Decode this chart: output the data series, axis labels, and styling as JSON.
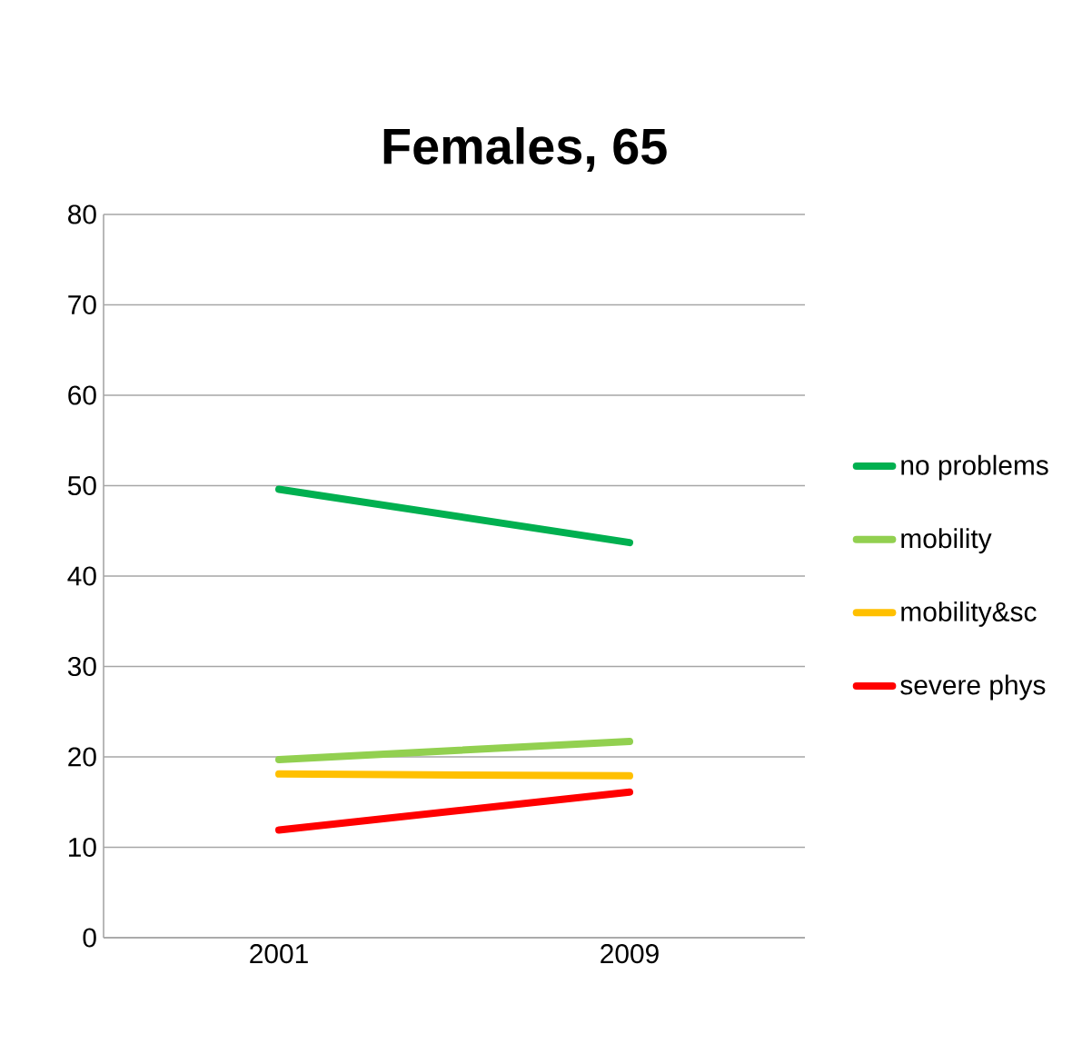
{
  "chart_data": {
    "type": "line",
    "title": "Females, 65",
    "categories": [
      "2001",
      "2009"
    ],
    "series": [
      {
        "name": "no problems",
        "color": "#00b050",
        "values": [
          49.6,
          43.7
        ]
      },
      {
        "name": "mobility",
        "color": "#92d050",
        "values": [
          19.7,
          21.7
        ]
      },
      {
        "name": "mobility&sc",
        "color": "#ffc000",
        "values": [
          18.1,
          17.9
        ]
      },
      {
        "name": "severe phys",
        "color": "#ff0000",
        "values": [
          11.9,
          16.1
        ]
      }
    ],
    "ylim": [
      0,
      80
    ],
    "yticks": [
      0,
      10,
      20,
      30,
      40,
      50,
      60,
      70,
      80
    ],
    "grid": "y",
    "legend": "right",
    "marker": "none",
    "line_style": "solid"
  }
}
